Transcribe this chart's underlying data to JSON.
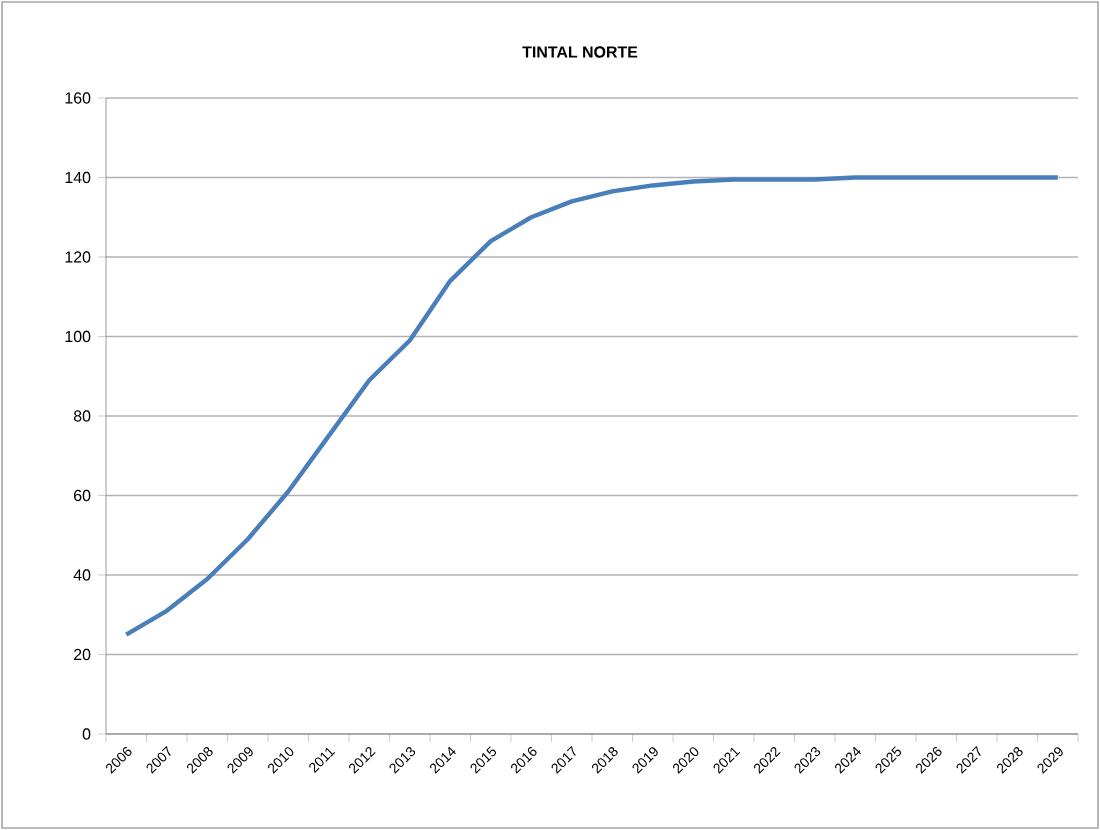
{
  "chart_data": {
    "type": "line",
    "title": "TINTAL NORTE",
    "categories": [
      "2006",
      "2007",
      "2008",
      "2009",
      "2010",
      "2011",
      "2012",
      "2013",
      "2014",
      "2015",
      "2016",
      "2017",
      "2018",
      "2019",
      "2020",
      "2021",
      "2022",
      "2023",
      "2024",
      "2025",
      "2026",
      "2027",
      "2028",
      "2029"
    ],
    "series": [
      {
        "color": "#4a7ebb",
        "values": [
          25,
          31,
          39,
          49,
          61,
          75,
          89,
          99,
          114,
          124,
          130,
          134,
          136.5,
          138,
          139,
          139.5,
          139.5,
          139.5,
          140,
          140,
          140,
          140,
          140,
          140
        ]
      }
    ],
    "ylim": [
      0,
      160
    ],
    "yticks": [
      0,
      20,
      40,
      60,
      80,
      100,
      120,
      140,
      160
    ],
    "grid": "y",
    "marker": "none",
    "line_style": "solid"
  }
}
